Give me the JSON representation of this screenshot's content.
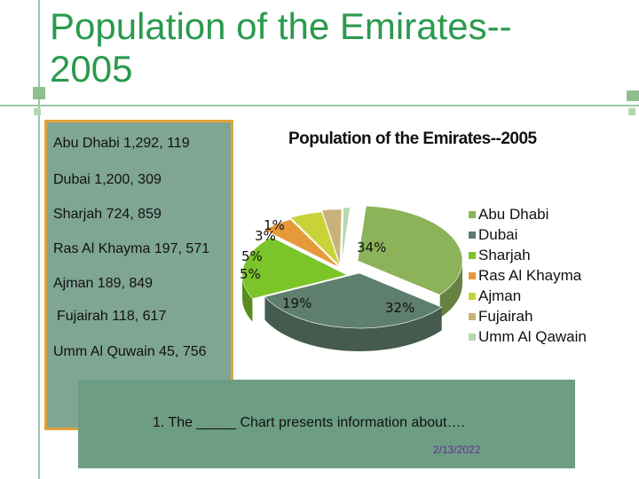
{
  "slide": {
    "title_line1": "Population of the Emirates--",
    "title_line2": "2005"
  },
  "population_list": [
    {
      "label": "Abu Dhabi 1,292, 119"
    },
    {
      "label": "Dubai 1,200, 309"
    },
    {
      "label": "Sharjah 724, 859"
    },
    {
      "label": "Ras Al Khayma 197, 571"
    },
    {
      "label": "Ajman 189, 849"
    },
    {
      "label": "Fujairah 118, 617"
    },
    {
      "label": "Umm Al Quwain 45, 756"
    }
  ],
  "chart_data": {
    "type": "pie",
    "title": "Population of the Emirates--2005",
    "categories": [
      "Abu Dhabi",
      "Dubai",
      "Sharjah",
      "Ras Al Khayma",
      "Ajman",
      "Fujairah",
      "Umm Al Qawain"
    ],
    "values": [
      34,
      32,
      19,
      5,
      5,
      3,
      1
    ],
    "value_labels": [
      "34%",
      "32%",
      "19%",
      "5%",
      "5%",
      "3%",
      "1%"
    ],
    "colors": [
      "#8db35a",
      "#5e7f6d",
      "#7bc42a",
      "#e59a3a",
      "#c8d33a",
      "#c9b27a",
      "#b7d8b0"
    ],
    "legend_position": "right",
    "three_d": true
  },
  "note": {
    "text": "1. The _____ Chart presents information about….",
    "date": "2/13/2022"
  }
}
